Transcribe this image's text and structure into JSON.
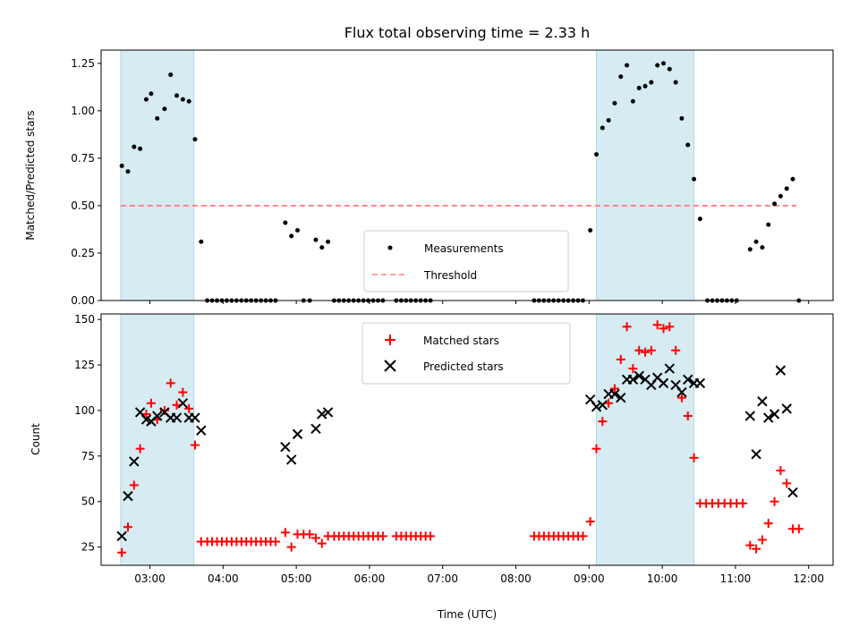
{
  "chart_data": [
    {
      "type": "scatter",
      "title": "Flux total observing time = 2.33 h",
      "xlabel": "",
      "ylabel": "Matched/Predicted stars",
      "xlim": [
        "02:20",
        "12:20"
      ],
      "ylim": [
        0,
        1.32
      ],
      "yticks": [
        "0.00",
        "0.25",
        "0.50",
        "0.75",
        "1.00",
        "1.25"
      ],
      "xtick_values": [
        "03:00",
        "04:00",
        "05:00",
        "06:00",
        "07:00",
        "08:00",
        "09:00",
        "10:00",
        "11:00",
        "12:00"
      ],
      "grid": false,
      "legend_position": "lower center",
      "shaded_intervals": [
        [
          "02:36",
          "03:36"
        ],
        [
          "09:06",
          "10:26"
        ]
      ],
      "threshold": {
        "value": 0.5,
        "x_start": "02:36",
        "x_end": "11:50",
        "color": "#ff7f7f"
      },
      "series": [
        {
          "name": "Measurements",
          "marker": "dot",
          "color": "#000000",
          "points": [
            [
              "02:37",
              0.71
            ],
            [
              "02:42",
              0.68
            ],
            [
              "02:47",
              0.81
            ],
            [
              "02:52",
              0.8
            ],
            [
              "02:57",
              1.06
            ],
            [
              "03:01",
              1.09
            ],
            [
              "03:06",
              0.96
            ],
            [
              "03:12",
              1.01
            ],
            [
              "03:17",
              1.19
            ],
            [
              "03:22",
              1.08
            ],
            [
              "03:27",
              1.06
            ],
            [
              "03:32",
              1.05
            ],
            [
              "03:37",
              0.85
            ],
            [
              "03:42",
              0.31
            ],
            [
              "03:47",
              0
            ],
            [
              "03:51",
              0
            ],
            [
              "03:55",
              0
            ],
            [
              "03:59",
              0
            ],
            [
              "04:03",
              0
            ],
            [
              "04:07",
              0
            ],
            [
              "04:11",
              0
            ],
            [
              "04:15",
              0
            ],
            [
              "04:19",
              0
            ],
            [
              "04:23",
              0
            ],
            [
              "04:27",
              0
            ],
            [
              "04:31",
              0
            ],
            [
              "04:35",
              0
            ],
            [
              "04:39",
              0
            ],
            [
              "04:43",
              0
            ],
            [
              "04:51",
              0.41
            ],
            [
              "04:56",
              0.34
            ],
            [
              "05:01",
              0.37
            ],
            [
              "05:06",
              0
            ],
            [
              "05:11",
              0
            ],
            [
              "05:16",
              0.32
            ],
            [
              "05:21",
              0.28
            ],
            [
              "05:26",
              0.31
            ],
            [
              "05:31",
              0
            ],
            [
              "05:35",
              0
            ],
            [
              "05:39",
              0
            ],
            [
              "05:43",
              0
            ],
            [
              "05:47",
              0
            ],
            [
              "05:51",
              0
            ],
            [
              "05:55",
              0
            ],
            [
              "05:59",
              0
            ],
            [
              "06:03",
              0
            ],
            [
              "06:07",
              0
            ],
            [
              "06:11",
              0
            ],
            [
              "06:22",
              0
            ],
            [
              "06:26",
              0
            ],
            [
              "06:30",
              0
            ],
            [
              "06:34",
              0
            ],
            [
              "06:38",
              0
            ],
            [
              "06:42",
              0
            ],
            [
              "06:46",
              0
            ],
            [
              "06:50",
              0
            ],
            [
              "08:15",
              0
            ],
            [
              "08:19",
              0
            ],
            [
              "08:23",
              0
            ],
            [
              "08:27",
              0
            ],
            [
              "08:31",
              0
            ],
            [
              "08:35",
              0
            ],
            [
              "08:39",
              0
            ],
            [
              "08:43",
              0
            ],
            [
              "08:47",
              0
            ],
            [
              "08:51",
              0
            ],
            [
              "08:55",
              0
            ],
            [
              "09:01",
              0.37
            ],
            [
              "09:06",
              0.77
            ],
            [
              "09:11",
              0.91
            ],
            [
              "09:16",
              0.95
            ],
            [
              "09:21",
              1.04
            ],
            [
              "09:26",
              1.18
            ],
            [
              "09:31",
              1.24
            ],
            [
              "09:36",
              1.05
            ],
            [
              "09:41",
              1.12
            ],
            [
              "09:46",
              1.13
            ],
            [
              "09:51",
              1.15
            ],
            [
              "09:56",
              1.24
            ],
            [
              "10:01",
              1.25
            ],
            [
              "10:06",
              1.22
            ],
            [
              "10:11",
              1.15
            ],
            [
              "10:16",
              0.96
            ],
            [
              "10:21",
              0.82
            ],
            [
              "10:26",
              0.64
            ],
            [
              "10:31",
              0.43
            ],
            [
              "10:37",
              0
            ],
            [
              "10:41",
              0
            ],
            [
              "10:45",
              0
            ],
            [
              "10:49",
              0
            ],
            [
              "10:53",
              0
            ],
            [
              "10:57",
              0
            ],
            [
              "11:01",
              0
            ],
            [
              "11:12",
              0.27
            ],
            [
              "11:17",
              0.31
            ],
            [
              "11:22",
              0.28
            ],
            [
              "11:27",
              0.4
            ],
            [
              "11:32",
              0.51
            ],
            [
              "11:37",
              0.55
            ],
            [
              "11:42",
              0.59
            ],
            [
              "11:47",
              0.64
            ],
            [
              "11:52",
              0
            ]
          ]
        },
        {
          "name": "Threshold",
          "marker": "dashed-line",
          "color": "#ff7f7f"
        }
      ]
    },
    {
      "type": "scatter",
      "title": "",
      "xlabel": "Time (UTC)",
      "ylabel": "Count",
      "xlim": [
        "02:20",
        "12:20"
      ],
      "ylim": [
        15,
        153
      ],
      "yticks": [
        "25",
        "50",
        "75",
        "100",
        "125",
        "150"
      ],
      "xticks": [
        "03:00",
        "04:00",
        "05:00",
        "06:00",
        "07:00",
        "08:00",
        "09:00",
        "10:00",
        "11:00",
        "12:00"
      ],
      "grid": false,
      "legend_position": "upper center",
      "shaded_intervals": [
        [
          "02:36",
          "03:36"
        ],
        [
          "09:06",
          "10:26"
        ]
      ],
      "series": [
        {
          "name": "Matched stars",
          "marker": "plus",
          "color": "#ff0000",
          "points": [
            [
              "02:37",
              22
            ],
            [
              "02:42",
              36
            ],
            [
              "02:47",
              59
            ],
            [
              "02:52",
              79
            ],
            [
              "02:57",
              98
            ],
            [
              "03:01",
              104
            ],
            [
              "03:06",
              95
            ],
            [
              "03:12",
              100
            ],
            [
              "03:17",
              115
            ],
            [
              "03:22",
              103
            ],
            [
              "03:27",
              110
            ],
            [
              "03:32",
              101
            ],
            [
              "03:37",
              81
            ],
            [
              "03:42",
              28
            ],
            [
              "03:47",
              28
            ],
            [
              "03:51",
              28
            ],
            [
              "03:55",
              28
            ],
            [
              "03:59",
              28
            ],
            [
              "04:03",
              28
            ],
            [
              "04:07",
              28
            ],
            [
              "04:11",
              28
            ],
            [
              "04:15",
              28
            ],
            [
              "04:19",
              28
            ],
            [
              "04:23",
              28
            ],
            [
              "04:27",
              28
            ],
            [
              "04:31",
              28
            ],
            [
              "04:35",
              28
            ],
            [
              "04:39",
              28
            ],
            [
              "04:43",
              28
            ],
            [
              "04:51",
              33
            ],
            [
              "04:56",
              25
            ],
            [
              "05:01",
              32
            ],
            [
              "05:06",
              32
            ],
            [
              "05:11",
              32
            ],
            [
              "05:16",
              30
            ],
            [
              "05:21",
              27
            ],
            [
              "05:26",
              31
            ],
            [
              "05:31",
              31
            ],
            [
              "05:35",
              31
            ],
            [
              "05:39",
              31
            ],
            [
              "05:43",
              31
            ],
            [
              "05:47",
              31
            ],
            [
              "05:51",
              31
            ],
            [
              "05:55",
              31
            ],
            [
              "05:59",
              31
            ],
            [
              "06:03",
              31
            ],
            [
              "06:07",
              31
            ],
            [
              "06:11",
              31
            ],
            [
              "06:22",
              31
            ],
            [
              "06:26",
              31
            ],
            [
              "06:30",
              31
            ],
            [
              "06:34",
              31
            ],
            [
              "06:38",
              31
            ],
            [
              "06:42",
              31
            ],
            [
              "06:46",
              31
            ],
            [
              "06:50",
              31
            ],
            [
              "08:15",
              31
            ],
            [
              "08:19",
              31
            ],
            [
              "08:23",
              31
            ],
            [
              "08:27",
              31
            ],
            [
              "08:31",
              31
            ],
            [
              "08:35",
              31
            ],
            [
              "08:39",
              31
            ],
            [
              "08:43",
              31
            ],
            [
              "08:47",
              31
            ],
            [
              "08:51",
              31
            ],
            [
              "08:55",
              31
            ],
            [
              "09:01",
              39
            ],
            [
              "09:06",
              79
            ],
            [
              "09:11",
              94
            ],
            [
              "09:16",
              104
            ],
            [
              "09:21",
              112
            ],
            [
              "09:26",
              128
            ],
            [
              "09:31",
              146
            ],
            [
              "09:36",
              123
            ],
            [
              "09:41",
              133
            ],
            [
              "09:46",
              132
            ],
            [
              "09:51",
              133
            ],
            [
              "09:56",
              147
            ],
            [
              "10:01",
              145
            ],
            [
              "10:06",
              146
            ],
            [
              "10:11",
              133
            ],
            [
              "10:16",
              107
            ],
            [
              "10:21",
              97
            ],
            [
              "10:26",
              74
            ],
            [
              "10:31",
              49
            ],
            [
              "10:36",
              49
            ],
            [
              "10:41",
              49
            ],
            [
              "10:46",
              49
            ],
            [
              "10:51",
              49
            ],
            [
              "10:56",
              49
            ],
            [
              "11:01",
              49
            ],
            [
              "11:06",
              49
            ],
            [
              "11:12",
              26
            ],
            [
              "11:17",
              24
            ],
            [
              "11:22",
              29
            ],
            [
              "11:27",
              38
            ],
            [
              "11:32",
              50
            ],
            [
              "11:37",
              67
            ],
            [
              "11:42",
              60
            ],
            [
              "11:47",
              35
            ],
            [
              "11:52",
              35
            ]
          ]
        },
        {
          "name": "Predicted stars",
          "marker": "x",
          "color": "#000000",
          "points": [
            [
              "02:37",
              31
            ],
            [
              "02:42",
              53
            ],
            [
              "02:47",
              72
            ],
            [
              "02:52",
              99
            ],
            [
              "02:57",
              95
            ],
            [
              "03:01",
              94
            ],
            [
              "03:06",
              97
            ],
            [
              "03:12",
              99
            ],
            [
              "03:17",
              96
            ],
            [
              "03:22",
              96
            ],
            [
              "03:27",
              104
            ],
            [
              "03:32",
              96
            ],
            [
              "03:37",
              96
            ],
            [
              "03:42",
              89
            ],
            [
              "04:51",
              80
            ],
            [
              "04:56",
              73
            ],
            [
              "05:01",
              87
            ],
            [
              "05:16",
              90
            ],
            [
              "05:21",
              98
            ],
            [
              "05:26",
              99
            ],
            [
              "09:01",
              106
            ],
            [
              "09:06",
              102
            ],
            [
              "09:11",
              103
            ],
            [
              "09:16",
              109
            ],
            [
              "09:21",
              109
            ],
            [
              "09:26",
              107
            ],
            [
              "09:31",
              117
            ],
            [
              "09:36",
              117
            ],
            [
              "09:41",
              119
            ],
            [
              "09:46",
              117
            ],
            [
              "09:51",
              114
            ],
            [
              "09:56",
              118
            ],
            [
              "10:01",
              115
            ],
            [
              "10:06",
              123
            ],
            [
              "10:11",
              114
            ],
            [
              "10:16",
              110
            ],
            [
              "10:21",
              117
            ],
            [
              "10:26",
              115
            ],
            [
              "10:31",
              115
            ],
            [
              "11:12",
              97
            ],
            [
              "11:17",
              76
            ],
            [
              "11:22",
              105
            ],
            [
              "11:27",
              96
            ],
            [
              "11:32",
              98
            ],
            [
              "11:37",
              122
            ],
            [
              "11:42",
              101
            ],
            [
              "11:47",
              55
            ]
          ]
        }
      ]
    }
  ]
}
